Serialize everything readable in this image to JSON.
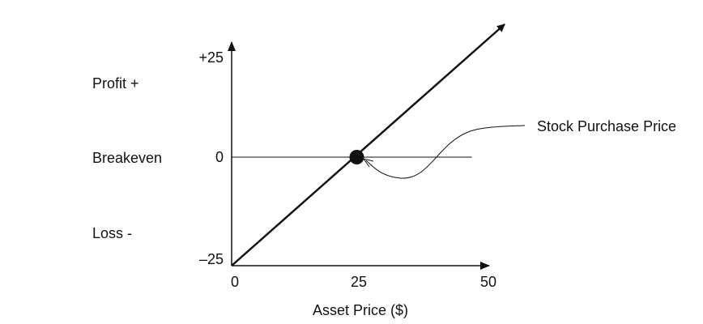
{
  "chart_data": {
    "type": "line",
    "title": "",
    "xlabel": "Asset Price ($)",
    "ylabel": "",
    "xlim": [
      0,
      50
    ],
    "ylim": [
      -25,
      25
    ],
    "x_ticks": [
      "0",
      "25",
      "50"
    ],
    "y_ticks": [
      "+25",
      "0",
      "–25"
    ],
    "row_labels": [
      "Profit +",
      "Breakeven",
      "Loss -"
    ],
    "series": [
      {
        "x": [
          0,
          25,
          50
        ],
        "y": [
          -25,
          0,
          25
        ]
      }
    ],
    "breakeven_line": {
      "y": 0,
      "x_end": 48
    },
    "annotation": {
      "text": "Stock Purchase Price",
      "point": [
        25,
        0
      ]
    },
    "colors": {
      "line": "#111111",
      "background": "#ffffff"
    }
  }
}
